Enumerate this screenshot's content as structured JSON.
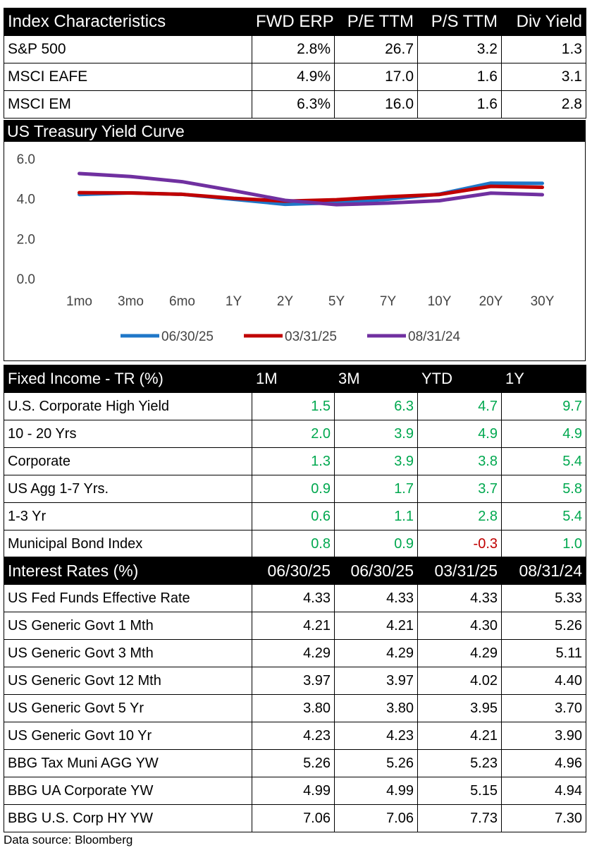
{
  "index_table": {
    "headers": [
      "Index Characteristics",
      "FWD ERP",
      "P/E TTM",
      "P/S TTM",
      "Div Yield"
    ],
    "rows": [
      [
        "S&P 500",
        "2.8%",
        "26.7",
        "3.2",
        "1.3"
      ],
      [
        "MSCI EAFE",
        "4.9%",
        "17.0",
        "1.6",
        "3.1"
      ],
      [
        "MSCI EM",
        "6.3%",
        "16.0",
        "1.6",
        "2.8"
      ]
    ]
  },
  "chart_data": {
    "type": "line",
    "title": "US Treasury Yield Curve",
    "categories": [
      "1mo",
      "3mo",
      "6mo",
      "1Y",
      "2Y",
      "5Y",
      "7Y",
      "10Y",
      "20Y",
      "30Y"
    ],
    "ylim": [
      0,
      6
    ],
    "yticks": [
      "0.0",
      "2.0",
      "4.0",
      "6.0"
    ],
    "grid": false,
    "legend": "bottom",
    "series": [
      {
        "name": "06/30/25",
        "color": "#1f77c8",
        "values": [
          4.21,
          4.29,
          4.22,
          3.97,
          3.72,
          3.8,
          3.97,
          4.23,
          4.78,
          4.77
        ]
      },
      {
        "name": "03/31/25",
        "color": "#c00000",
        "values": [
          4.3,
          4.29,
          4.22,
          4.02,
          3.88,
          3.95,
          4.1,
          4.21,
          4.62,
          4.57
        ]
      },
      {
        "name": "08/31/24",
        "color": "#7030a0",
        "values": [
          5.26,
          5.11,
          4.85,
          4.4,
          3.92,
          3.7,
          3.78,
          3.9,
          4.28,
          4.2
        ]
      }
    ]
  },
  "fixed_table": {
    "headers": [
      "Fixed Income - TR (%)",
      "1M",
      "3M",
      "YTD",
      "1Y"
    ],
    "rows": [
      [
        "U.S. Corporate High Yield",
        "1.5",
        "6.3",
        "4.7",
        "9.7"
      ],
      [
        "10 - 20 Yrs",
        "2.0",
        "3.9",
        "4.9",
        "4.9"
      ],
      [
        "Corporate",
        "1.3",
        "3.9",
        "3.8",
        "5.4"
      ],
      [
        "US Agg 1-7 Yrs.",
        "0.9",
        "1.7",
        "3.7",
        "5.8"
      ],
      [
        "1-3 Yr",
        "0.6",
        "1.1",
        "2.8",
        "5.4"
      ],
      [
        "Municipal Bond Index",
        "0.8",
        "0.9",
        "-0.3",
        "1.0"
      ]
    ],
    "positive_color": "#00a84f",
    "negative_color": "#c00000"
  },
  "rates_table": {
    "headers": [
      "Interest Rates (%)",
      "06/30/25",
      "06/30/25",
      "03/31/25",
      "08/31/24"
    ],
    "rows": [
      [
        "US Fed Funds Effective Rate",
        "4.33",
        "4.33",
        "4.33",
        "5.33"
      ],
      [
        "US Generic Govt 1 Mth",
        "4.21",
        "4.21",
        "4.30",
        "5.26"
      ],
      [
        "US Generic Govt 3 Mth",
        "4.29",
        "4.29",
        "4.29",
        "5.11"
      ],
      [
        "US Generic Govt 12 Mth",
        "3.97",
        "3.97",
        "4.02",
        "4.40"
      ],
      [
        "US Generic Govt 5 Yr",
        "3.80",
        "3.80",
        "3.95",
        "3.70"
      ],
      [
        "US Generic Govt 10 Yr",
        "4.23",
        "4.23",
        "4.21",
        "3.90"
      ],
      [
        "BBG Tax Muni AGG YW",
        "5.26",
        "5.26",
        "5.23",
        "4.96"
      ],
      [
        "BBG UA Corporate YW",
        "4.99",
        "4.99",
        "5.15",
        "4.94"
      ],
      [
        "BBG U.S. Corp HY YW",
        "7.06",
        "7.06",
        "7.73",
        "7.30"
      ]
    ]
  },
  "source": "Data source: Bloomberg"
}
